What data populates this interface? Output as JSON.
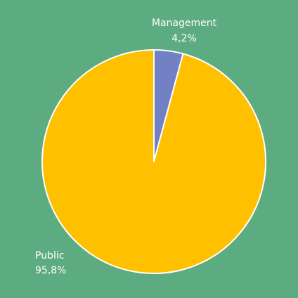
{
  "chart_data": {
    "type": "pie",
    "slices": [
      {
        "label": "Management",
        "value": 4.2,
        "value_label": "4,2%",
        "color": "#7280c4"
      },
      {
        "label": "Public",
        "value": 95.8,
        "value_label": "95,8%",
        "color": "#ffc000"
      }
    ],
    "slice_border_color": "#ffffff",
    "background_color": "#5dab80",
    "legend": "none",
    "start_angle": "12 o'clock",
    "direction": "clockwise"
  }
}
